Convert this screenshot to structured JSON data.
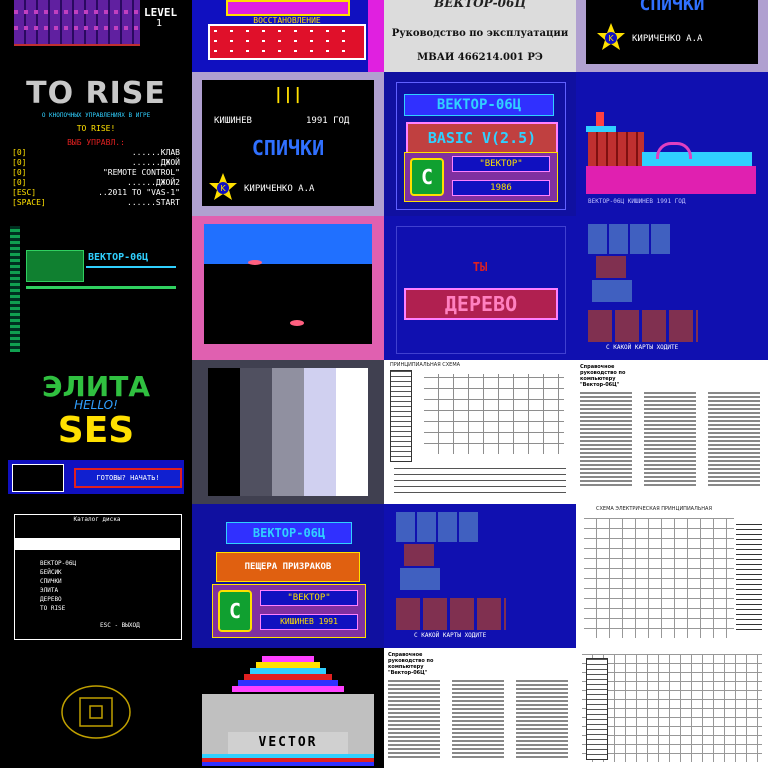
{
  "t00": {
    "label": "LEVEL",
    "num": "1"
  },
  "t01": {
    "line1": "ВОССТАНОВЛЕНИЕ"
  },
  "t02": {
    "title": "ВЕКТОР-06Ц",
    "subtitle": "Руководство по эксплуатации",
    "code": "МВАИ 466214.001 РЭ"
  },
  "t03": {
    "title": "СПИЧКИ",
    "author": "КИРИЧЕНКО А.А"
  },
  "t10": {
    "logo": "TO RISE",
    "sub": "О КНОПОЧНЫХ УПРАВЛЕНИЯХ В ИГРЕ",
    "ready": "TO RISE!",
    "keys_title": "ВЫБ УПРАВЛ.:",
    "keys": [
      {
        "k": "[0]",
        "v": "......КЛАВ"
      },
      {
        "k": "[0]",
        "v": "......ДЖОЙ"
      },
      {
        "k": "[0]",
        "v": "\"REMOTE CONTROL\""
      },
      {
        "k": "[0]",
        "v": "......ДЖОЙ2"
      },
      {
        "k": "[ESC]",
        "v": "..2011 TO \"VAS-1\""
      },
      {
        "k": "[SPACE]",
        "v": "......START"
      }
    ]
  },
  "t11": {
    "bars": "|||",
    "city": "КИШИНЕВ",
    "year": "1991 ГОД",
    "title": "СПИЧКИ",
    "author": "КИРИЧЕНКО А.А"
  },
  "t12": {
    "title": "ВЕКТОР-06Ц",
    "basic": "BASIC V(2.5)",
    "brand": "\"ВЕКТОР\"",
    "year": "1986"
  },
  "t13": {
    "credit": "ВЕКТОР-06Ц КИШИНЕВ 1991 ГОД"
  },
  "t20": {
    "title": "ВЕКТОР-06Ц"
  },
  "t22": {
    "line1": "ТЫ",
    "line2": "ДЕРЕВО"
  },
  "t23": {
    "prompt": "С КАКОЙ КАРТЫ ХОДИТЕ"
  },
  "t30": {
    "title": "ЭЛИТА",
    "hello": "HELLO!",
    "ses": "SES",
    "button": "ГОТОВЫ? НАЧАТЬ!"
  },
  "t32": {
    "header": "ПРИНЦИПИАЛЬНАЯ СХЕМА"
  },
  "t33": {
    "title": "Справочное руководство по компьютеру \"Вектор-06Ц\""
  },
  "t40": {
    "header": "Каталог диска",
    "rows": [
      "ВЕКТОР-06Ц",
      "БЕЙСИК",
      "СПИЧКИ",
      "ЭЛИТА",
      "ДЕРЕВО",
      "ТО RISE"
    ],
    "footer": "ESC - ВЫХОД"
  },
  "t41": {
    "title": "ВЕКТОР-06Ц",
    "game": "ПЕЩЕРА ПРИЗРАКОВ",
    "brand": "\"ВЕКТОР\"",
    "city_year": "КИШИНЕВ 1991"
  },
  "t42": {
    "prompt": "С КАКОЙ КАРТЫ ХОДИТЕ"
  },
  "t43": {
    "header": "СХЕМА ЭЛЕКТРИЧЕСКАЯ ПРИНЦИПИАЛЬНАЯ"
  },
  "t51": {
    "label": "VECTOR"
  },
  "t52": {
    "title": "Справочное руководство по компьютеру \"Вектор-06Ц\""
  },
  "colors": {
    "blue": "#1010a0",
    "red": "#e0102a",
    "pink": "#e060b0",
    "lavender": "#b0a0d0",
    "yellow": "#ffe000",
    "cyan": "#30d0ff"
  }
}
